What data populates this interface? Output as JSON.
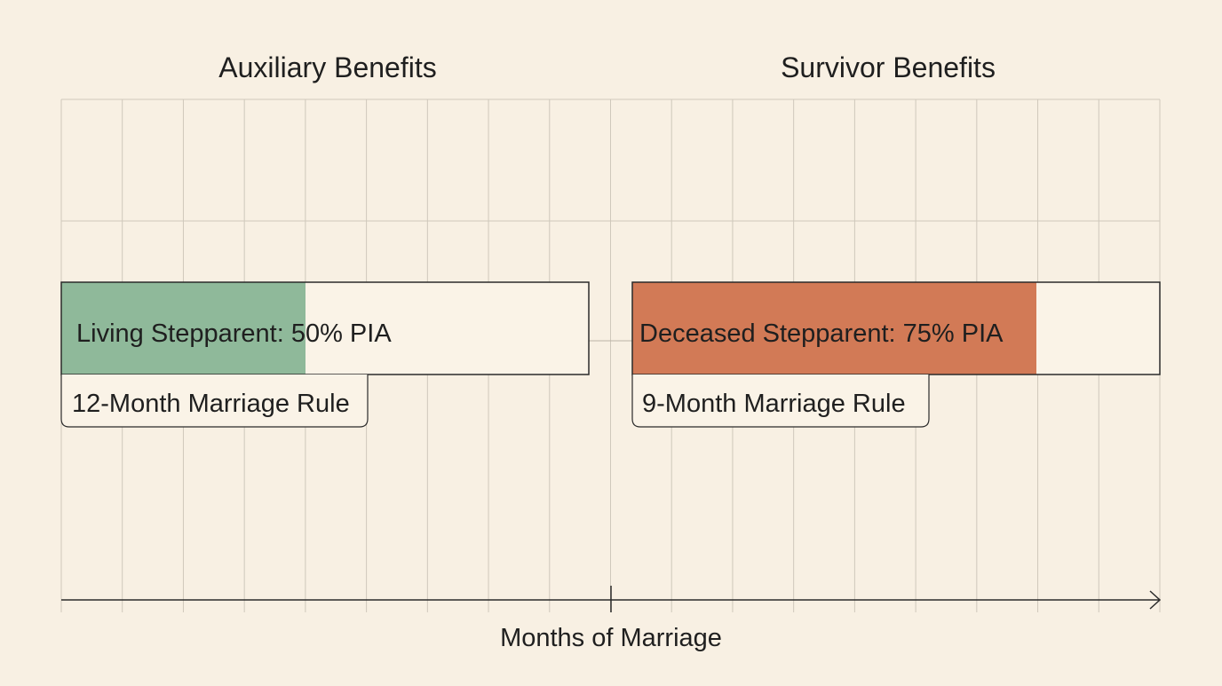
{
  "panels": {
    "auxiliary": {
      "title": "Auxiliary Benefits",
      "bar_label": "Living Stepparent: 50% PIA",
      "rule_label": "12-Month Marriage Rule",
      "fill_color": "#8fb99a",
      "fill_fraction": 0.463
    },
    "survivor": {
      "title": "Survivor Benefits",
      "bar_label": "Deceased Stepparent: 75% PIA",
      "rule_label": "9-Month Marriage Rule",
      "fill_color": "#d27a56",
      "fill_fraction": 0.766
    }
  },
  "axis": {
    "label": "Months of Marriage"
  },
  "colors": {
    "background": "#f8f0e3",
    "grid": "#cfc8bb",
    "stroke": "#2a2a2a",
    "bar_empty": "#faf3e7"
  }
}
